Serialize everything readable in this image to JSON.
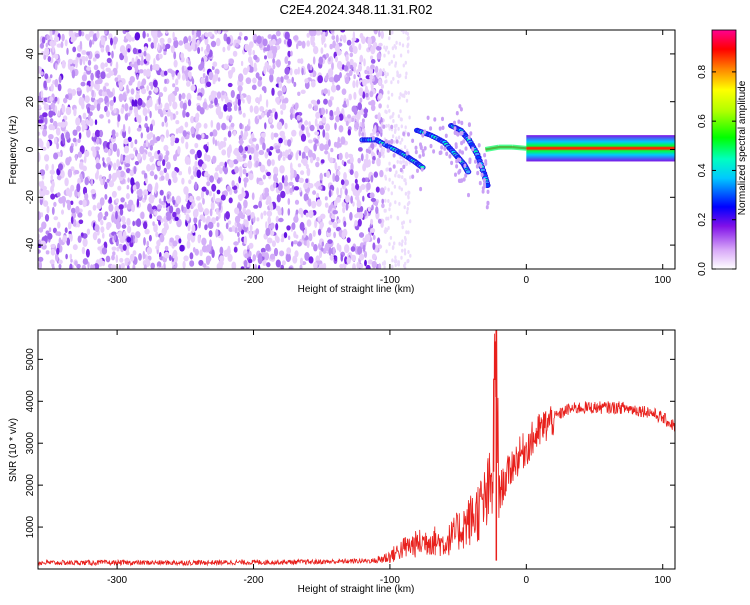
{
  "title": "C2E4.2024.348.11.31.R02",
  "chart_data": [
    {
      "type": "heatmap",
      "xlabel": "Height of straight line (km)",
      "ylabel": "Frequency (Hz)",
      "xlim": [
        -358,
        109
      ],
      "ylim": [
        -50,
        50
      ],
      "xticks": [
        -300,
        -200,
        -100,
        0,
        100
      ],
      "yticks": [
        -40,
        -20,
        0,
        20,
        40
      ],
      "colorbar": {
        "label": "Normalized spectral amplitude",
        "range": [
          0,
          0.97
        ],
        "ticks": [
          0.0,
          0.2,
          0.4,
          0.6,
          0.8
        ],
        "colormap": [
          "#ffffff",
          "#a020f0",
          "#0000ff",
          "#00ffff",
          "#00ff00",
          "#ffff00",
          "#ff0000",
          "#ff0080"
        ]
      },
      "features": [
        {
          "name": "noise_region",
          "x_range": [
            -358,
            -105
          ],
          "freq_range": [
            -50,
            50
          ],
          "amplitude": 0.08
        },
        {
          "name": "scattered_faint",
          "x_range": [
            -105,
            -85
          ],
          "freq_range": [
            -50,
            50
          ],
          "amplitude": 0.02
        },
        {
          "name": "descending_tone_1",
          "points": [
            [
              -120,
              4
            ],
            [
              -110,
              4
            ],
            [
              -100,
              1
            ],
            [
              -90,
              -2
            ],
            [
              -82,
              -5
            ],
            [
              -75,
              -8
            ]
          ],
          "amplitude": 0.3
        },
        {
          "name": "descending_tone_2",
          "points": [
            [
              -80,
              8
            ],
            [
              -70,
              6
            ],
            [
              -60,
              3
            ],
            [
              -52,
              -2
            ],
            [
              -46,
              -6
            ],
            [
              -42,
              -10
            ]
          ],
          "amplitude": 0.3
        },
        {
          "name": "descending_tone_3",
          "points": [
            [
              -55,
              10
            ],
            [
              -48,
              8
            ],
            [
              -42,
              4
            ],
            [
              -36,
              -2
            ],
            [
              -31,
              -10
            ],
            [
              -28,
              -16
            ]
          ],
          "amplitude": 0.3
        },
        {
          "name": "carrier_line",
          "points": [
            [
              -30,
              0
            ],
            [
              -20,
              1
            ],
            [
              -10,
              1
            ],
            [
              0,
              0.5
            ],
            [
              20,
              0.5
            ],
            [
              60,
              0.5
            ],
            [
              109,
              0.5
            ]
          ],
          "amplitude": 0.85
        }
      ]
    },
    {
      "type": "line",
      "xlabel": "Height of straight line (km)",
      "ylabel": "SNR (10 * v/v)",
      "xlim": [
        -358,
        109
      ],
      "ylim": [
        0,
        5700
      ],
      "xticks": [
        -300,
        -200,
        -100,
        0,
        100
      ],
      "yticks": [
        1000,
        2000,
        3000,
        4000,
        5000
      ],
      "color": "#e8201c",
      "series": [
        {
          "name": "SNR",
          "x": [
            -358,
            -300,
            -250,
            -200,
            -150,
            -110,
            -100,
            -90,
            -80,
            -70,
            -60,
            -50,
            -40,
            -30,
            -25,
            -22,
            -20,
            -10,
            0,
            10,
            20,
            30,
            40,
            50,
            60,
            70,
            80,
            90,
            100,
            109
          ],
          "values": [
            150,
            150,
            150,
            160,
            170,
            200,
            300,
            500,
            600,
            700,
            600,
            900,
            1200,
            1600,
            2000,
            5700,
            1800,
            2500,
            2900,
            3300,
            3600,
            3800,
            3850,
            3850,
            3850,
            3850,
            3800,
            3750,
            3600,
            3400
          ]
        }
      ]
    }
  ]
}
